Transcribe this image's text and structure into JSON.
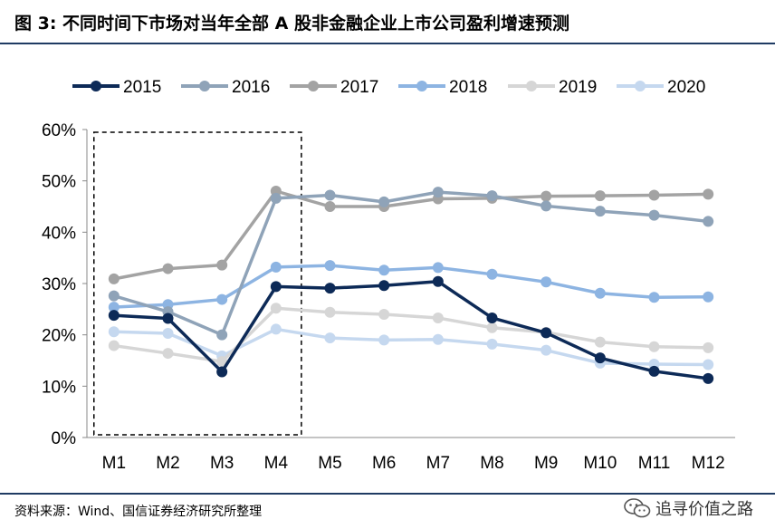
{
  "title": "图 3:  不同时间下市场对当年全部 A 股非金融企业上市公司盈利增速预测",
  "source": "资料来源：Wind、国信证券经济研究所整理",
  "watermark": "追寻价值之路",
  "chart_data": {
    "type": "line",
    "categories": [
      "M1",
      "M2",
      "M3",
      "M4",
      "M5",
      "M6",
      "M7",
      "M8",
      "M9",
      "M10",
      "M11",
      "M12"
    ],
    "y_ticks": [
      "0%",
      "10%",
      "20%",
      "30%",
      "40%",
      "50%",
      "60%"
    ],
    "ylim": [
      0,
      60
    ],
    "legend_position": "top",
    "highlight_box": {
      "from_category": "M1",
      "to_category": "M4"
    },
    "series": [
      {
        "name": "2015",
        "color": "#0d2a57",
        "values": [
          23.8,
          23.2,
          12.8,
          29.4,
          29.1,
          29.6,
          30.4,
          23.3,
          20.4,
          15.5,
          12.9,
          11.5
        ]
      },
      {
        "name": "2016",
        "color": "#8fa3b8",
        "values": [
          27.6,
          24.5,
          20.0,
          46.6,
          47.2,
          45.9,
          47.8,
          47.1,
          45.1,
          44.1,
          43.3,
          42.1
        ]
      },
      {
        "name": "2017",
        "color": "#a3a3a3",
        "values": [
          30.9,
          32.9,
          33.6,
          48.0,
          45.0,
          45.0,
          46.5,
          46.6,
          47.0,
          47.1,
          47.2,
          47.4
        ]
      },
      {
        "name": "2018",
        "color": "#8db4e2",
        "values": [
          25.4,
          25.9,
          26.9,
          33.2,
          33.5,
          32.6,
          33.1,
          31.8,
          30.3,
          28.1,
          27.3,
          27.4
        ]
      },
      {
        "name": "2019",
        "color": "#d6d6d6",
        "values": [
          17.9,
          16.4,
          14.8,
          25.2,
          24.4,
          24.0,
          23.3,
          21.4,
          20.5,
          18.6,
          17.7,
          17.5
        ]
      },
      {
        "name": "2020",
        "color": "#c5d8ef",
        "values": [
          20.6,
          20.3,
          15.9,
          21.1,
          19.4,
          19.0,
          19.1,
          18.2,
          17.0,
          14.5,
          14.3,
          14.2
        ]
      }
    ]
  }
}
